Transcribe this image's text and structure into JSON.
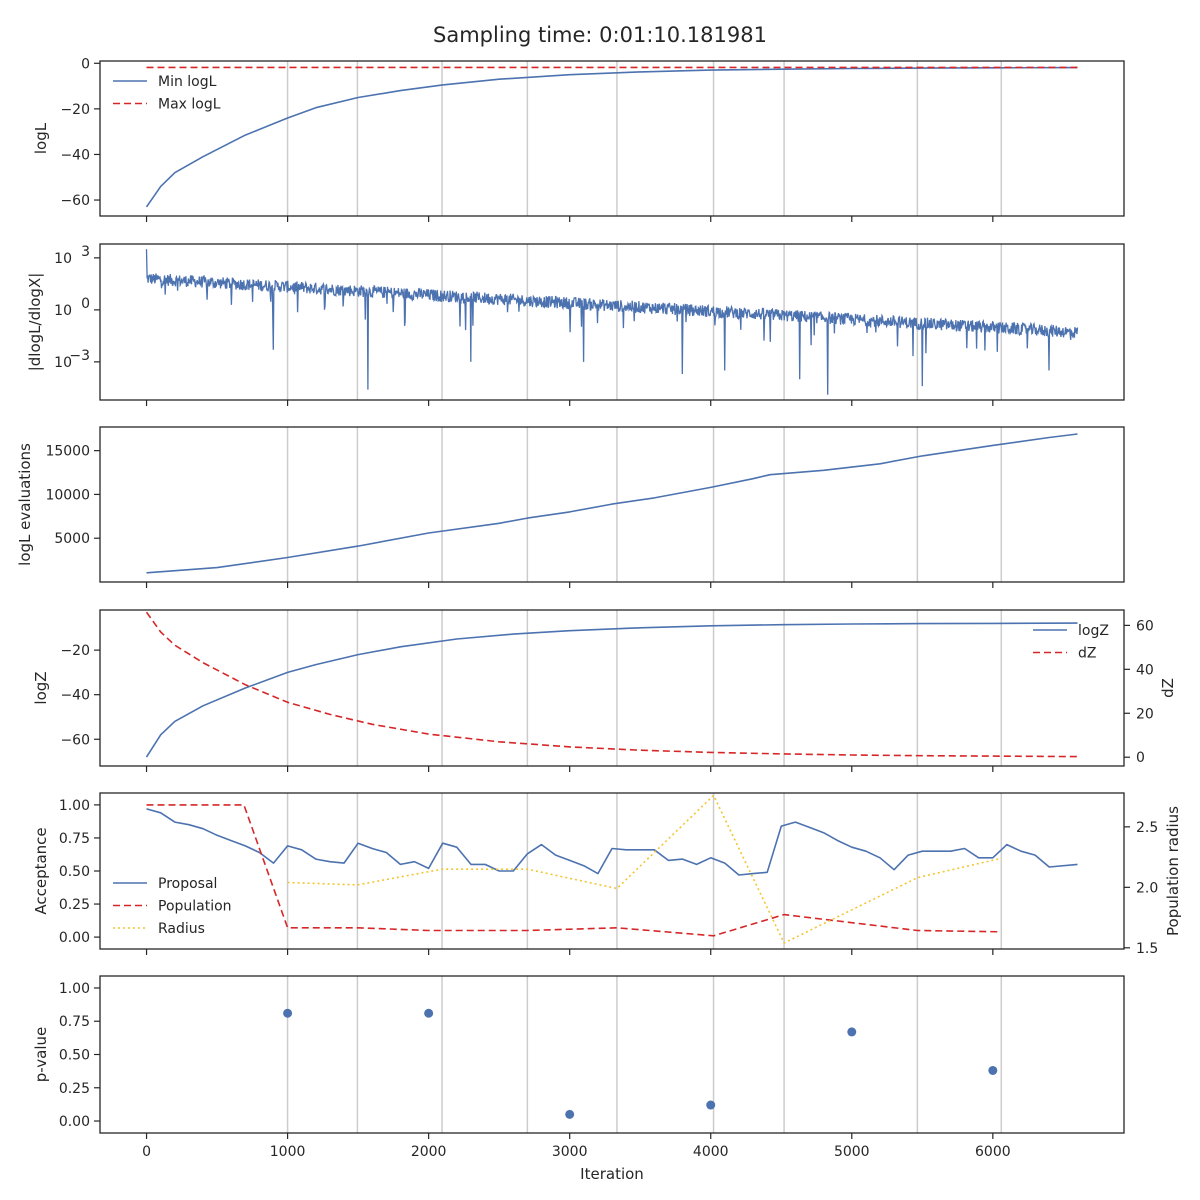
{
  "title": "Sampling time: 0:01:10.181981",
  "colors": {
    "blue": "#4c72b0",
    "red": "#d62728",
    "yellow": "#f2c52f",
    "vline": "#cccccc",
    "axis": "#262626"
  },
  "x_axis": {
    "label": "Iteration",
    "xlim": [
      -330,
      6930
    ],
    "ticks": [
      0,
      1000,
      2000,
      3000,
      4000,
      5000,
      6000
    ]
  },
  "vlines": [
    1000,
    1495,
    2095,
    2700,
    3335,
    4020,
    4520,
    5465,
    6060
  ],
  "chart_data": [
    {
      "id": "logL",
      "type": "line",
      "ylabel": "logL",
      "ylim": [
        -67,
        1
      ],
      "yticks": [
        {
          "v": 0,
          "label": "0"
        },
        {
          "v": -20,
          "label": "−20"
        },
        {
          "v": -40,
          "label": "−40"
        },
        {
          "v": -60,
          "label": "−60"
        }
      ],
      "legend": {
        "position": "upper-left",
        "entries": [
          {
            "label": "Min logL",
            "series": 0
          },
          {
            "label": "Max logL",
            "series": 1
          }
        ]
      },
      "series": [
        {
          "name": "Min logL",
          "style": "solid",
          "color": "#4c72b0",
          "x": [
            0,
            100,
            200,
            400,
            700,
            1000,
            1200,
            1500,
            1800,
            2100,
            2500,
            3000,
            3500,
            4000,
            4500,
            5000,
            5500,
            6000,
            6600
          ],
          "y": [
            -63,
            -54,
            -48,
            -41,
            -31.5,
            -24,
            -19.5,
            -15,
            -12,
            -9.5,
            -7,
            -5,
            -3.8,
            -3,
            -2.6,
            -2.3,
            -2.1,
            -2.0,
            -1.9
          ]
        },
        {
          "name": "Max logL",
          "style": "dashed",
          "color": "#d62728",
          "x": [
            0,
            6600
          ],
          "y": [
            -1.8,
            -1.8
          ]
        }
      ]
    },
    {
      "id": "dlogL",
      "type": "line",
      "scale": "log",
      "ylabel": "|dlogL/dlogX|",
      "ylim_exp": [
        -5.2,
        3.8
      ],
      "yticks": [
        {
          "e": 3
        },
        {
          "e": 0
        },
        {
          "e": -3
        }
      ],
      "series": [
        {
          "name": "",
          "style": "solid",
          "color": "#4c72b0",
          "points": 1800,
          "x_range": [
            0,
            6600
          ],
          "start_log10": 1.8,
          "end_log10": -1.3,
          "noise_log10": 0.35,
          "dips": [
            {
              "x": 0,
              "y": 3.5
            },
            {
              "x": 1570,
              "y": -4.6
            },
            {
              "x": 4630,
              "y": -4.0
            },
            {
              "x": 4830,
              "y": -4.9
            },
            {
              "x": 5500,
              "y": -4.4
            },
            {
              "x": 4100,
              "y": -3.5
            },
            {
              "x": 2300,
              "y": -3.0
            },
            {
              "x": 3800,
              "y": -3.7
            },
            {
              "x": 6400,
              "y": -3.5
            },
            {
              "x": 900,
              "y": -2.3
            },
            {
              "x": 3100,
              "y": -3.0
            }
          ]
        }
      ]
    },
    {
      "id": "evals",
      "type": "line",
      "ylabel": "logL evaluations",
      "ylim": [
        0,
        17700
      ],
      "yticks": [
        {
          "v": 5000,
          "label": "5000"
        },
        {
          "v": 10000,
          "label": "10000"
        },
        {
          "v": 15000,
          "label": "15000"
        }
      ],
      "series": [
        {
          "name": "",
          "style": "solid",
          "color": "#4c72b0",
          "x": [
            0,
            500,
            1000,
            1500,
            2000,
            2500,
            2700,
            3000,
            3300,
            3600,
            4000,
            4300,
            4420,
            4800,
            5200,
            5500,
            6000,
            6400,
            6600
          ],
          "y": [
            1050,
            1650,
            2800,
            4100,
            5600,
            6700,
            7300,
            8000,
            8900,
            9600,
            10800,
            11800,
            12250,
            12750,
            13500,
            14400,
            15600,
            16500,
            16900
          ]
        }
      ]
    },
    {
      "id": "logZ",
      "type": "line",
      "ylabel": "logZ",
      "ylabel2": "dZ",
      "ylim": [
        -72,
        -2
      ],
      "ylim2": [
        -4,
        67
      ],
      "yticks": [
        {
          "v": -20,
          "label": "−20"
        },
        {
          "v": -40,
          "label": "−40"
        },
        {
          "v": -60,
          "label": "−60"
        }
      ],
      "yticks2": [
        {
          "v": 0,
          "label": "0"
        },
        {
          "v": 20,
          "label": "20"
        },
        {
          "v": 40,
          "label": "40"
        },
        {
          "v": 60,
          "label": "60"
        }
      ],
      "legend": {
        "position": "upper-right",
        "entries": [
          {
            "label": "logZ",
            "series": 0
          },
          {
            "label": "dZ",
            "series": 1
          }
        ]
      },
      "series": [
        {
          "name": "logZ",
          "axis": "left",
          "style": "solid",
          "color": "#4c72b0",
          "x": [
            0,
            100,
            200,
            400,
            700,
            1000,
            1200,
            1500,
            1800,
            2200,
            2600,
            3000,
            3500,
            4000,
            4500,
            5000,
            5500,
            6000,
            6600
          ],
          "y": [
            -68,
            -58,
            -52,
            -45,
            -37,
            -30,
            -26.5,
            -22,
            -18.5,
            -15,
            -12.8,
            -11.3,
            -10.0,
            -9.1,
            -8.6,
            -8.3,
            -8.1,
            -8.0,
            -7.9
          ]
        },
        {
          "name": "dZ",
          "axis": "right",
          "style": "dashed",
          "color": "#d62728",
          "x": [
            0,
            100,
            200,
            400,
            700,
            1000,
            1300,
            1600,
            2000,
            2500,
            3000,
            3500,
            4000,
            4500,
            5000,
            5500,
            6000,
            6600
          ],
          "y": [
            66,
            57,
            51,
            43,
            33,
            25,
            19.5,
            15,
            10.5,
            7,
            4.7,
            3.2,
            2.2,
            1.5,
            1.0,
            0.7,
            0.5,
            0.3
          ]
        }
      ]
    },
    {
      "id": "acceptance",
      "type": "line",
      "ylabel": "Acceptance",
      "ylabel2": "Population radius",
      "ylim": [
        -0.09,
        1.09
      ],
      "ylim2": [
        1.49,
        2.78
      ],
      "yticks": [
        {
          "v": 0,
          "label": "0.00"
        },
        {
          "v": 0.25,
          "label": "0.25"
        },
        {
          "v": 0.5,
          "label": "0.50"
        },
        {
          "v": 0.75,
          "label": "0.75"
        },
        {
          "v": 1.0,
          "label": "1.00"
        }
      ],
      "yticks2": [
        {
          "v": 1.5,
          "label": "1.5"
        },
        {
          "v": 2.0,
          "label": "2.0"
        },
        {
          "v": 2.5,
          "label": "2.5"
        }
      ],
      "legend": {
        "position": "lower-left",
        "entries": [
          {
            "label": "Proposal",
            "series": 0
          },
          {
            "label": "Population",
            "series": 1
          },
          {
            "label": "Radius",
            "series": 2
          }
        ]
      },
      "series": [
        {
          "name": "Proposal",
          "axis": "left",
          "style": "solid",
          "color": "#4c72b0",
          "x": [
            0,
            100,
            200,
            300,
            400,
            500,
            600,
            700,
            800,
            900,
            1000,
            1100,
            1200,
            1300,
            1400,
            1500,
            1600,
            1700,
            1800,
            1900,
            2000,
            2100,
            2200,
            2300,
            2400,
            2500,
            2600,
            2700,
            2800,
            2900,
            3000,
            3100,
            3200,
            3300,
            3400,
            3500,
            3600,
            3700,
            3800,
            3900,
            4000,
            4100,
            4200,
            4300,
            4400,
            4500,
            4600,
            4700,
            4800,
            4900,
            5000,
            5100,
            5200,
            5300,
            5400,
            5500,
            5600,
            5700,
            5800,
            5900,
            6000,
            6100,
            6200,
            6300,
            6400,
            6600
          ],
          "y": [
            0.97,
            0.94,
            0.87,
            0.85,
            0.82,
            0.77,
            0.73,
            0.69,
            0.64,
            0.56,
            0.69,
            0.66,
            0.59,
            0.57,
            0.56,
            0.71,
            0.67,
            0.64,
            0.55,
            0.57,
            0.52,
            0.71,
            0.68,
            0.55,
            0.55,
            0.5,
            0.5,
            0.63,
            0.7,
            0.62,
            0.58,
            0.54,
            0.48,
            0.67,
            0.66,
            0.66,
            0.66,
            0.58,
            0.59,
            0.55,
            0.6,
            0.56,
            0.47,
            0.48,
            0.49,
            0.84,
            0.87,
            0.83,
            0.79,
            0.73,
            0.68,
            0.65,
            0.6,
            0.51,
            0.62,
            0.65,
            0.65,
            0.65,
            0.67,
            0.6,
            0.6,
            0.7,
            0.65,
            0.62,
            0.53,
            0.55
          ]
        },
        {
          "name": "Population",
          "axis": "left",
          "style": "dashed",
          "color": "#d62728",
          "x": [
            0,
            690,
            1000,
            1500,
            2000,
            2700,
            3335,
            4020,
            4520,
            5465,
            6060
          ],
          "y": [
            1.0,
            1.0,
            0.07,
            0.07,
            0.05,
            0.05,
            0.07,
            0.01,
            0.17,
            0.05,
            0.04
          ]
        },
        {
          "name": "Radius",
          "axis": "right",
          "style": "dotted",
          "color": "#f2c52f",
          "x": [
            1000,
            1495,
            2095,
            2700,
            3335,
            4020,
            4520,
            5465,
            6060
          ],
          "y": [
            2.04,
            2.02,
            2.15,
            2.15,
            1.99,
            2.76,
            1.54,
            2.08,
            2.24
          ]
        }
      ]
    },
    {
      "id": "pvalue",
      "type": "scatter",
      "ylabel": "p-value",
      "ylim": [
        -0.09,
        1.09
      ],
      "yticks": [
        {
          "v": 0,
          "label": "0.00"
        },
        {
          "v": 0.25,
          "label": "0.25"
        },
        {
          "v": 0.5,
          "label": "0.50"
        },
        {
          "v": 0.75,
          "label": "0.75"
        },
        {
          "v": 1.0,
          "label": "1.00"
        }
      ],
      "series": [
        {
          "name": "",
          "color": "#4c72b0",
          "x": [
            1000,
            2000,
            3000,
            4000,
            5000,
            6000
          ],
          "y": [
            0.81,
            0.81,
            0.05,
            0.12,
            0.67,
            0.38
          ]
        }
      ]
    }
  ]
}
